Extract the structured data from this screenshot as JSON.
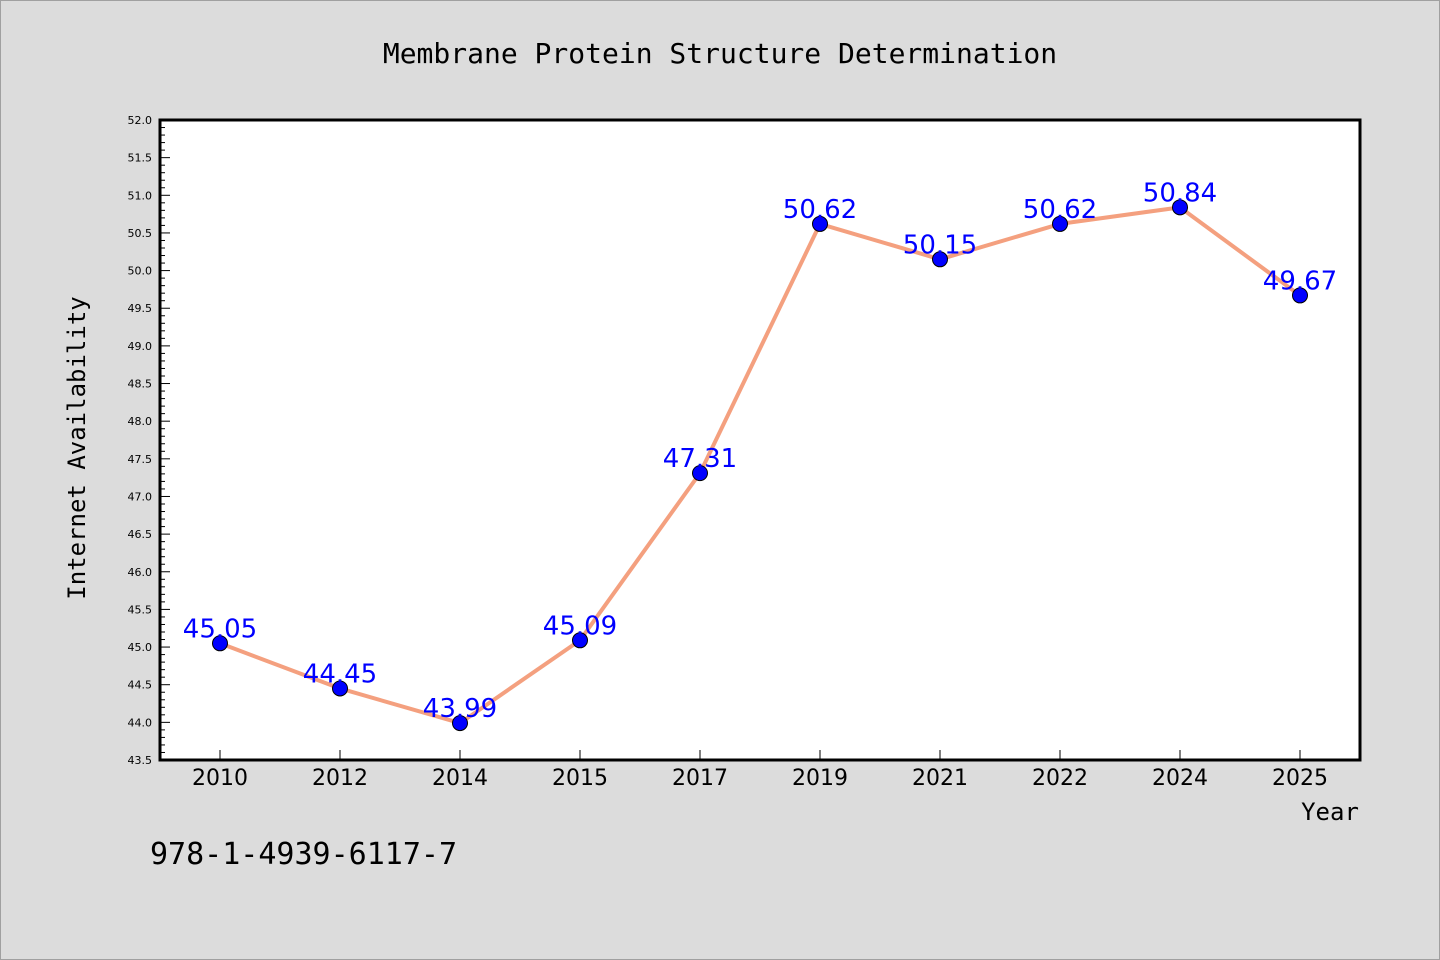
{
  "chart_data": {
    "type": "line",
    "title": "Membrane Protein Structure Determination",
    "xlabel": "Year",
    "ylabel": "Internet Availability",
    "categories": [
      "2010",
      "2012",
      "2014",
      "2015",
      "2017",
      "2019",
      "2021",
      "2022",
      "2024",
      "2025"
    ],
    "series": [
      {
        "values": [
          45.05,
          44.45,
          43.99,
          45.09,
          47.31,
          50.62,
          50.15,
          50.62,
          50.84,
          49.67
        ],
        "labels": [
          "45.05",
          "44.45",
          "43.99",
          "45.09",
          "47.31",
          "50.62",
          "50.15",
          "50.62",
          "50.84",
          "49.67"
        ]
      }
    ],
    "ylim": [
      43.5,
      52.0
    ],
    "yticks": [
      "43.5",
      "44.0",
      "44.5",
      "45.0",
      "45.5",
      "46.0",
      "46.5",
      "47.0",
      "47.5",
      "48.0",
      "48.5",
      "49.0",
      "49.5",
      "50.0",
      "50.5",
      "51.0",
      "51.5",
      "52.0"
    ],
    "grid": false,
    "line_color": "#f4a07f",
    "marker_color": "#0000ff",
    "label_color": "#0000ff",
    "annotation": "978-1-4939-6117-7"
  }
}
